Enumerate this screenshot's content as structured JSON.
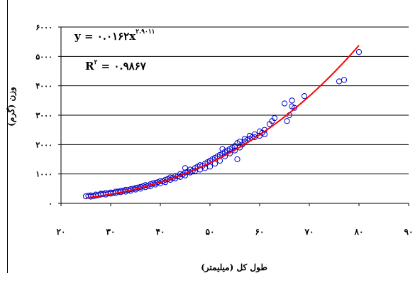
{
  "chart_data": {
    "type": "scatter",
    "title": "",
    "xlabel": "طول کل (میلیمتر)",
    "ylabel": "وزن (گرم)",
    "xlim": [
      20,
      90
    ],
    "ylim": [
      0,
      6000
    ],
    "x_ticks": [
      20,
      30,
      40,
      50,
      60,
      70,
      80,
      90
    ],
    "x_tick_labels": [
      "۲۰",
      "۳۰",
      "۴۰",
      "۵۰",
      "۶۰",
      "۷۰",
      "۸۰",
      "۹۰"
    ],
    "y_ticks": [
      0,
      1000,
      2000,
      3000,
      4000,
      5000,
      6000
    ],
    "y_tick_labels": [
      "۰",
      "۱۰۰۰",
      "۲۰۰۰",
      "۳۰۰۰",
      "۴۰۰۰",
      "۵۰۰۰",
      "۶۰۰۰"
    ],
    "grid": "horizontal",
    "legend": "none",
    "annotations": {
      "equation": "y = ۰.۰۱۶۲x",
      "exponent": "۲.۹۰۱۱",
      "r2_prefix": "R",
      "r2_sup": "۲",
      "r2_value": " = ۰.۹۸۶۷"
    },
    "trendline": {
      "type": "power",
      "a": 0.0162,
      "b": 2.9011,
      "x_from": 25,
      "x_to": 80,
      "color": "#ff0000"
    },
    "marker_color": "#0000cc",
    "series": [
      {
        "points": [
          [
            25,
            240
          ],
          [
            25.5,
            260
          ],
          [
            26,
            230
          ],
          [
            26,
            270
          ],
          [
            26.5,
            250
          ],
          [
            27,
            260
          ],
          [
            27,
            300
          ],
          [
            27.5,
            280
          ],
          [
            28,
            300
          ],
          [
            28,
            330
          ],
          [
            28.5,
            320
          ],
          [
            29,
            300
          ],
          [
            29,
            350
          ],
          [
            29.5,
            340
          ],
          [
            30,
            330
          ],
          [
            30,
            370
          ],
          [
            30.5,
            360
          ],
          [
            31,
            350
          ],
          [
            31,
            400
          ],
          [
            31.5,
            400
          ],
          [
            32,
            380
          ],
          [
            32,
            420
          ],
          [
            32.5,
            430
          ],
          [
            33,
            400
          ],
          [
            33,
            460
          ],
          [
            33.5,
            450
          ],
          [
            34,
            430
          ],
          [
            34,
            480
          ],
          [
            34.5,
            500
          ],
          [
            35,
            470
          ],
          [
            35,
            520
          ],
          [
            35.5,
            540
          ],
          [
            36,
            500
          ],
          [
            36,
            560
          ],
          [
            36.5,
            580
          ],
          [
            37,
            550
          ],
          [
            37,
            620
          ],
          [
            37.5,
            600
          ],
          [
            38,
            580
          ],
          [
            38,
            650
          ],
          [
            38.5,
            680
          ],
          [
            39,
            640
          ],
          [
            39,
            700
          ],
          [
            39.5,
            720
          ],
          [
            40,
            680
          ],
          [
            40,
            760
          ],
          [
            40.5,
            750
          ],
          [
            41,
            720
          ],
          [
            41,
            800
          ],
          [
            41.5,
            830
          ],
          [
            42,
            800
          ],
          [
            42,
            880
          ],
          [
            42.5,
            860
          ],
          [
            43,
            850
          ],
          [
            43,
            930
          ],
          [
            43.5,
            920
          ],
          [
            44,
            900
          ],
          [
            44,
            1000
          ],
          [
            44.5,
            980
          ],
          [
            45,
            950
          ],
          [
            45,
            1050
          ],
          [
            45,
            1200
          ],
          [
            45.5,
            1080
          ],
          [
            46,
            1050
          ],
          [
            46,
            1150
          ],
          [
            46.5,
            1100
          ],
          [
            47,
            1100
          ],
          [
            47,
            1200
          ],
          [
            47.5,
            1250
          ],
          [
            48,
            1150
          ],
          [
            48,
            1300
          ],
          [
            48.5,
            1280
          ],
          [
            49,
            1200
          ],
          [
            49,
            1350
          ],
          [
            49.5,
            1400
          ],
          [
            50,
            1250
          ],
          [
            50,
            1450
          ],
          [
            50.5,
            1500
          ],
          [
            51,
            1350
          ],
          [
            51,
            1550
          ],
          [
            51.5,
            1600
          ],
          [
            52,
            1450
          ],
          [
            52,
            1650
          ],
          [
            52.5,
            1700
          ],
          [
            52.5,
            1850
          ],
          [
            53,
            1600
          ],
          [
            53,
            1750
          ],
          [
            53.5,
            1800
          ],
          [
            54,
            1700
          ],
          [
            54,
            1850
          ],
          [
            54.5,
            1900
          ],
          [
            55,
            1800
          ],
          [
            55,
            1950
          ],
          [
            55.5,
            1500
          ],
          [
            55.5,
            2050
          ],
          [
            56,
            1900
          ],
          [
            56,
            2100
          ],
          [
            56.5,
            2000
          ],
          [
            57,
            2100
          ],
          [
            57,
            2200
          ],
          [
            57.5,
            2150
          ],
          [
            58,
            2200
          ],
          [
            58,
            2300
          ],
          [
            58.5,
            2250
          ],
          [
            59,
            2250
          ],
          [
            59,
            2350
          ],
          [
            60,
            2300
          ],
          [
            60,
            2450
          ],
          [
            60.5,
            2400
          ],
          [
            61,
            2500
          ],
          [
            61,
            2350
          ],
          [
            62,
            2700
          ],
          [
            62.5,
            2800
          ],
          [
            63,
            2900
          ],
          [
            65,
            3400
          ],
          [
            65.5,
            2800
          ],
          [
            66,
            3000
          ],
          [
            66.5,
            3500
          ],
          [
            66.5,
            3300
          ],
          [
            67,
            3250
          ],
          [
            69,
            3650
          ],
          [
            76,
            4150
          ],
          [
            77,
            4200
          ],
          [
            80,
            5150
          ]
        ]
      }
    ]
  }
}
